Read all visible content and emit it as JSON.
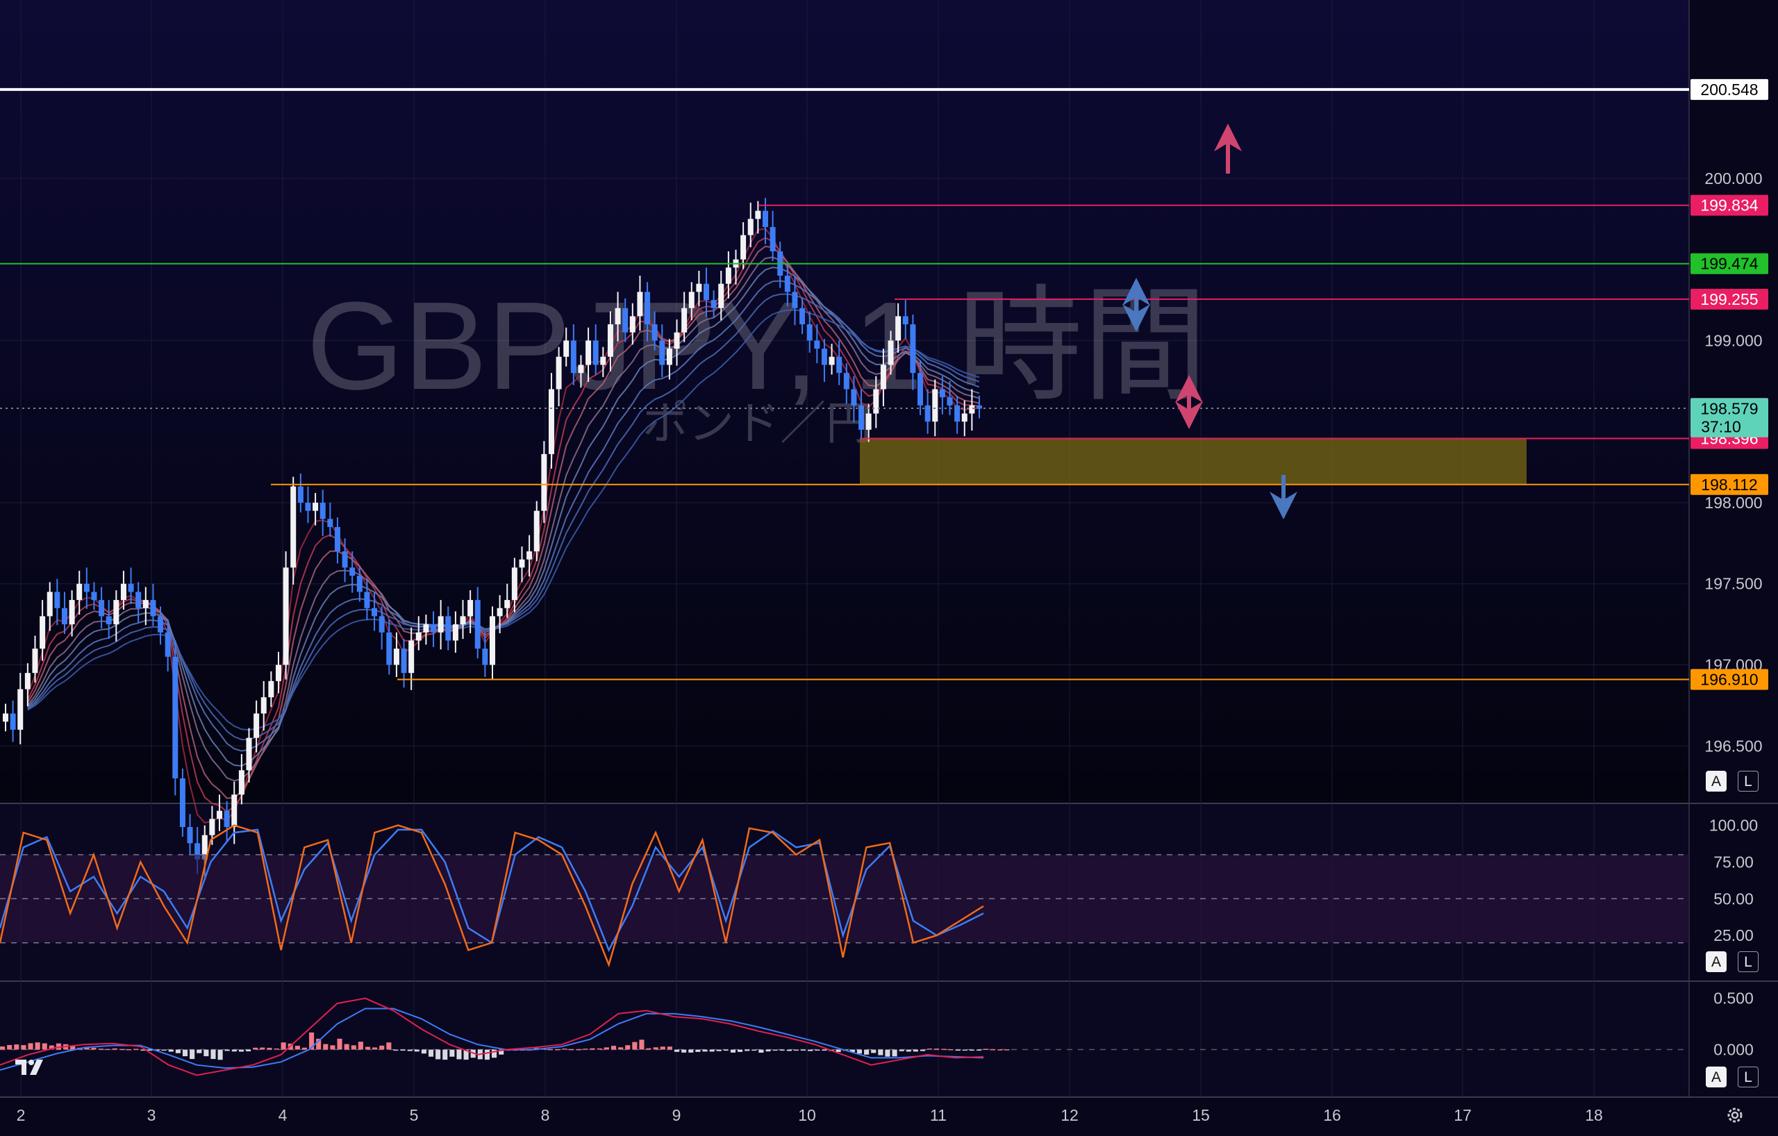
{
  "chart_data": {
    "type": "candlestick",
    "watermark": {
      "symbol": "GBPJPY, 1 時間",
      "description": "ポンド／円"
    },
    "price_axis": {
      "ticks": [
        "200.000",
        "199.000",
        "198.000",
        "197.500",
        "197.000",
        "196.500"
      ],
      "ylim": [
        196.15,
        201.1
      ]
    },
    "time_axis": {
      "labels": [
        "2",
        "3",
        "4",
        "5",
        "8",
        "9",
        "10",
        "11",
        "12",
        "15",
        "16",
        "17",
        "18"
      ]
    },
    "horizontal_lines": [
      {
        "price": 200.548,
        "label": "200.548",
        "color": "#ffffff",
        "style": "thick"
      },
      {
        "price": 199.834,
        "label": "199.834",
        "color": "#e91e63"
      },
      {
        "price": 199.474,
        "label": "199.474",
        "color": "#22c02a"
      },
      {
        "price": 199.255,
        "label": "199.255",
        "color": "#e91e63"
      },
      {
        "price": 198.582,
        "label": "198.582",
        "color": "#787b86",
        "style": "dotted"
      },
      {
        "price": 198.396,
        "label": "198.396",
        "color": "#e91e63"
      },
      {
        "price": 198.112,
        "label": "198.112",
        "color": "#ff9800"
      },
      {
        "price": 196.91,
        "label": "196.910",
        "color": "#ff9800"
      }
    ],
    "current_price": {
      "price": "198.579",
      "countdown": "37:10",
      "color": "#5fd3b9"
    },
    "zone": {
      "from": 198.396,
      "to": 198.112,
      "color": "#7a6a12"
    },
    "arrows": [
      {
        "direction": "up",
        "color": "#d04570"
      },
      {
        "direction": "up-down",
        "color": "#4a78c0"
      },
      {
        "direction": "up-down",
        "color": "#d04570"
      },
      {
        "direction": "down",
        "color": "#4a78c0"
      }
    ],
    "candles_close": [
      196.7,
      196.6,
      196.85,
      196.95,
      197.1,
      197.3,
      197.45,
      197.35,
      197.25,
      197.4,
      197.5,
      197.45,
      197.4,
      197.3,
      197.25,
      197.4,
      197.5,
      197.45,
      197.35,
      197.4,
      197.3,
      197.2,
      197.05,
      196.3,
      196.0,
      195.9,
      195.8,
      195.95,
      196.05,
      196.1,
      196.0,
      196.2,
      196.35,
      196.55,
      196.7,
      196.8,
      196.9,
      197.0,
      197.6,
      198.1,
      198.0,
      197.95,
      198.0,
      197.9,
      197.85,
      197.7,
      197.6,
      197.55,
      197.45,
      197.35,
      197.3,
      197.2,
      197.0,
      197.1,
      196.95,
      197.15,
      197.2,
      197.25,
      197.2,
      197.3,
      197.15,
      197.25,
      197.3,
      197.4,
      197.1,
      197.0,
      197.3,
      197.35,
      197.4,
      197.6,
      197.65,
      197.7,
      197.95,
      198.3,
      198.7,
      198.9,
      199.0,
      198.8,
      198.85,
      199.0,
      198.85,
      198.9,
      199.1,
      199.2,
      199.05,
      199.15,
      199.3,
      199.1,
      199.0,
      198.85,
      198.95,
      199.05,
      199.2,
      199.3,
      199.35,
      199.25,
      199.2,
      199.35,
      199.45,
      199.5,
      199.65,
      199.75,
      199.8,
      199.7,
      199.55,
      199.4,
      199.3,
      199.2,
      199.1,
      199.0,
      198.95,
      198.85,
      198.9,
      198.8,
      198.7,
      198.6,
      198.45,
      198.55,
      198.7,
      198.85,
      199.0,
      199.15,
      199.1,
      198.8,
      198.6,
      198.5,
      198.7,
      198.65,
      198.6,
      198.5,
      198.55,
      198.6,
      198.58
    ],
    "stochastic": {
      "ticks": [
        "100.00",
        "75.00",
        "50.00",
        "25.00"
      ],
      "ylim": [
        0,
        105
      ],
      "k_values": [
        20,
        95,
        90,
        40,
        80,
        30,
        75,
        45,
        20,
        90,
        100,
        95,
        15,
        85,
        90,
        20,
        95,
        100,
        95,
        60,
        15,
        20,
        95,
        90,
        80,
        45,
        5,
        60,
        95,
        55,
        90,
        20,
        98,
        95,
        80,
        90,
        10,
        85,
        88,
        20,
        25,
        35,
        45
      ],
      "d_values": [
        30,
        85,
        92,
        55,
        65,
        40,
        65,
        55,
        30,
        75,
        95,
        97,
        35,
        70,
        88,
        35,
        80,
        97,
        97,
        75,
        30,
        20,
        80,
        92,
        85,
        55,
        15,
        45,
        85,
        65,
        85,
        35,
        85,
        96,
        85,
        88,
        25,
        70,
        86,
        35,
        25,
        32,
        40
      ]
    },
    "macd": {
      "ticks": [
        "0.500",
        "0.000"
      ],
      "ylim": [
        -0.45,
        0.62
      ],
      "macd_values": [
        -0.15,
        -0.05,
        0.02,
        0.05,
        0.06,
        0.03,
        -0.15,
        -0.25,
        -0.2,
        -0.15,
        -0.05,
        0.2,
        0.45,
        0.5,
        0.38,
        0.2,
        0.05,
        -0.05,
        0.0,
        0.02,
        0.05,
        0.15,
        0.35,
        0.38,
        0.32,
        0.3,
        0.25,
        0.18,
        0.12,
        0.05,
        -0.05,
        -0.15,
        -0.1,
        -0.05,
        -0.08,
        -0.07
      ],
      "signal_values": [
        -0.2,
        -0.12,
        -0.04,
        0.02,
        0.04,
        0.04,
        -0.05,
        -0.15,
        -0.18,
        -0.17,
        -0.12,
        0.0,
        0.25,
        0.4,
        0.4,
        0.3,
        0.15,
        0.05,
        0.0,
        0.0,
        0.03,
        0.1,
        0.25,
        0.35,
        0.35,
        0.32,
        0.28,
        0.22,
        0.15,
        0.08,
        0.0,
        -0.08,
        -0.08,
        -0.06,
        -0.07,
        -0.08
      ]
    }
  },
  "controls": {
    "main": {
      "a": "A",
      "l": "L"
    },
    "stoch": {
      "a": "A",
      "l": "L"
    },
    "macd": {
      "a": "A",
      "l": "L"
    }
  },
  "icons": [
    "tradingview-logo",
    "settings-gear-icon"
  ]
}
